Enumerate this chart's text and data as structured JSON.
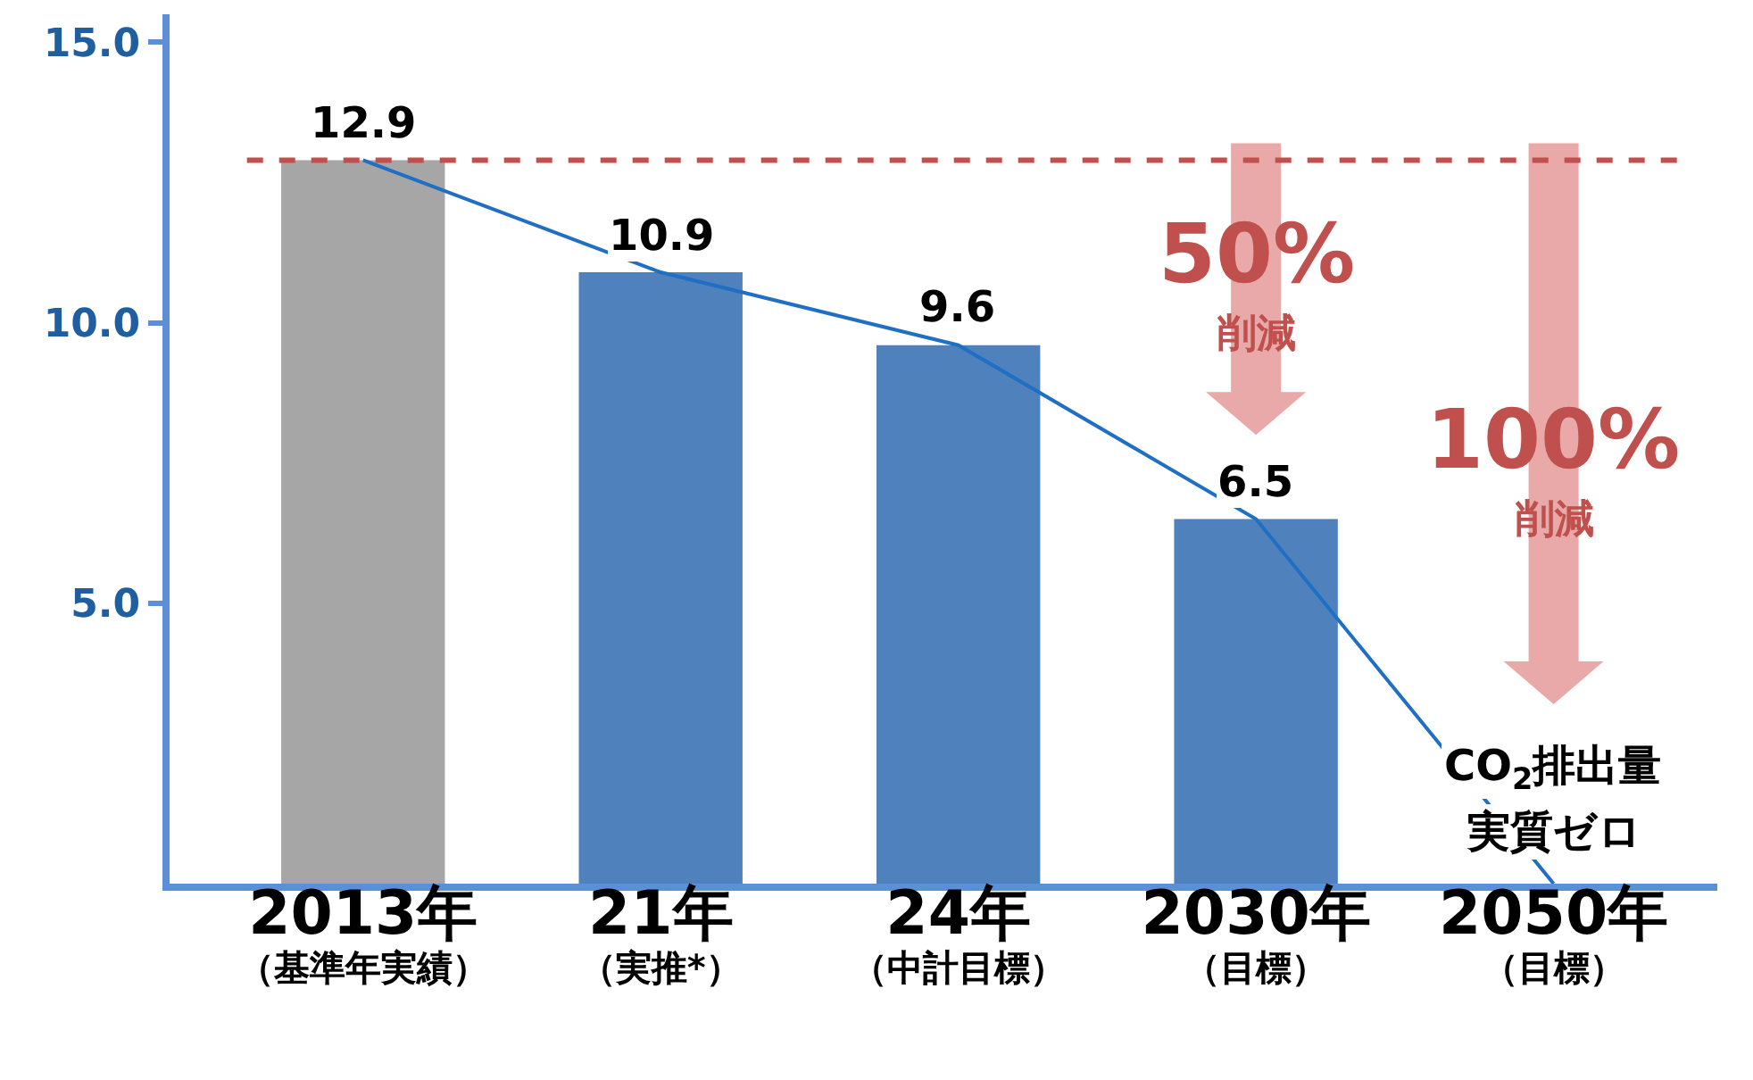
{
  "chart_data": {
    "type": "bar",
    "categories": [
      "2013年（基準年実績）",
      "21年（実推*）",
      "24年（中計目標）",
      "2030年（目標）",
      "2050年（目標）"
    ],
    "series": [
      {
        "values": [
          12.9,
          10.9,
          9.6,
          6.5,
          null
        ],
        "value_labels": [
          "12.9",
          "10.9",
          "9.6",
          "6.5",
          null
        ],
        "colors": [
          "#a6a6a6",
          "#4f81bd",
          "#4f81bd",
          "#4f81bd",
          "#4f81bd"
        ]
      },
      {
        "type": "line",
        "color": "#1f6fc4",
        "values": [
          12.9,
          10.9,
          9.6,
          6.5,
          0
        ]
      }
    ],
    "ylim": [
      0,
      15.5
    ],
    "yticks": [
      {
        "value": 5,
        "label": "5.0"
      },
      {
        "value": 10,
        "label": "10.0"
      },
      {
        "value": 15,
        "label": "15.0"
      }
    ],
    "ref_lines": [
      {
        "axis": "y",
        "value": 12.9,
        "color": "#c0504d",
        "line_style": "dashed"
      }
    ],
    "annotations": [
      "50%\n削減",
      "100%\n削減",
      "CO$_{2}$排出量",
      "実質ゼロ"
    ],
    "grid": false,
    "marker": "none"
  }
}
